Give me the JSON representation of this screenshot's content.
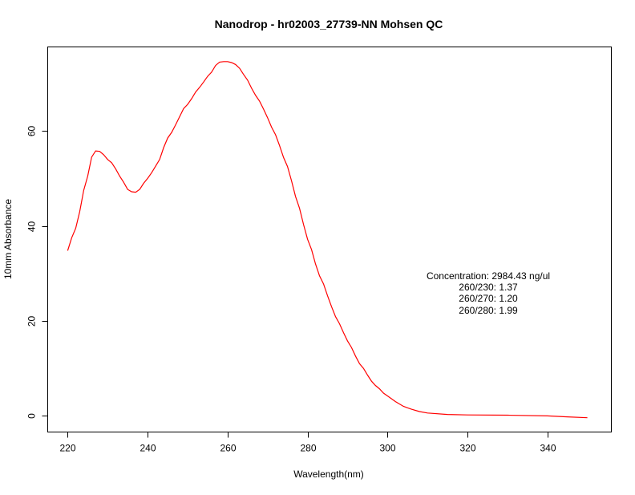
{
  "chart_data": {
    "type": "line",
    "title": "Nanodrop - hr02003_27739-NN Mohsen QC",
    "xlabel": "Wavelength(nm)",
    "ylabel": "10mm Absorbance",
    "xlim": [
      215,
      356
    ],
    "ylim": [
      -3.4,
      77.7
    ],
    "xticks": [
      220,
      240,
      260,
      280,
      300,
      320,
      340
    ],
    "yticks": [
      0,
      20,
      40,
      60
    ],
    "grid": false,
    "series": [
      {
        "color": "#ff0000",
        "x": [
          220,
          221,
          222,
          223,
          224,
          225,
          226,
          227,
          228,
          229,
          230,
          231,
          232,
          233,
          234,
          235,
          236,
          237,
          238,
          239,
          240,
          241,
          242,
          243,
          244,
          245,
          246,
          247,
          248,
          249,
          250,
          251,
          252,
          253,
          254,
          255,
          256,
          257,
          258,
          259,
          260,
          261,
          262,
          263,
          264,
          265,
          266,
          267,
          268,
          269,
          270,
          271,
          272,
          273,
          274,
          275,
          276,
          277,
          278,
          279,
          280,
          281,
          282,
          283,
          284,
          285,
          286,
          287,
          288,
          289,
          290,
          291,
          292,
          293,
          294,
          295,
          296,
          297,
          298,
          299,
          300,
          302,
          304,
          306,
          308,
          310,
          315,
          320,
          330,
          340,
          345,
          350
        ],
        "y": [
          34.8,
          37.5,
          39.5,
          43,
          47.5,
          50.5,
          54.5,
          55.8,
          55.7,
          55,
          54,
          53.3,
          52,
          50.5,
          49.2,
          47.7,
          47.2,
          47.1,
          47.7,
          49,
          50,
          51.2,
          52.6,
          54,
          56.5,
          58.5,
          59.7,
          61.3,
          63,
          64.7,
          65.6,
          66.8,
          68.2,
          69.2,
          70.3,
          71.5,
          72.4,
          73.8,
          74.5,
          74.6,
          74.6,
          74.4,
          74.0,
          73.2,
          71.9,
          70.7,
          69.0,
          67.5,
          66.3,
          64.6,
          62.8,
          60.8,
          59.2,
          56.9,
          54.4,
          52.5,
          49.5,
          46.2,
          43.7,
          40.3,
          37.2,
          35,
          32,
          29.5,
          27.8,
          25.3,
          23,
          20.9,
          19.4,
          17.5,
          15.8,
          14.4,
          12.6,
          11,
          10,
          8.6,
          7.3,
          6.4,
          5.7,
          4.8,
          4.2,
          3.0,
          2.0,
          1.4,
          0.9,
          0.6,
          0.3,
          0.2,
          0.15,
          0.0,
          -0.2,
          -0.4
        ]
      }
    ],
    "annotations": [
      "Concentration: 2984.43 ng/ul",
      "260/230: 1.37",
      "260/270: 1.20",
      "260/280: 1.99"
    ]
  }
}
